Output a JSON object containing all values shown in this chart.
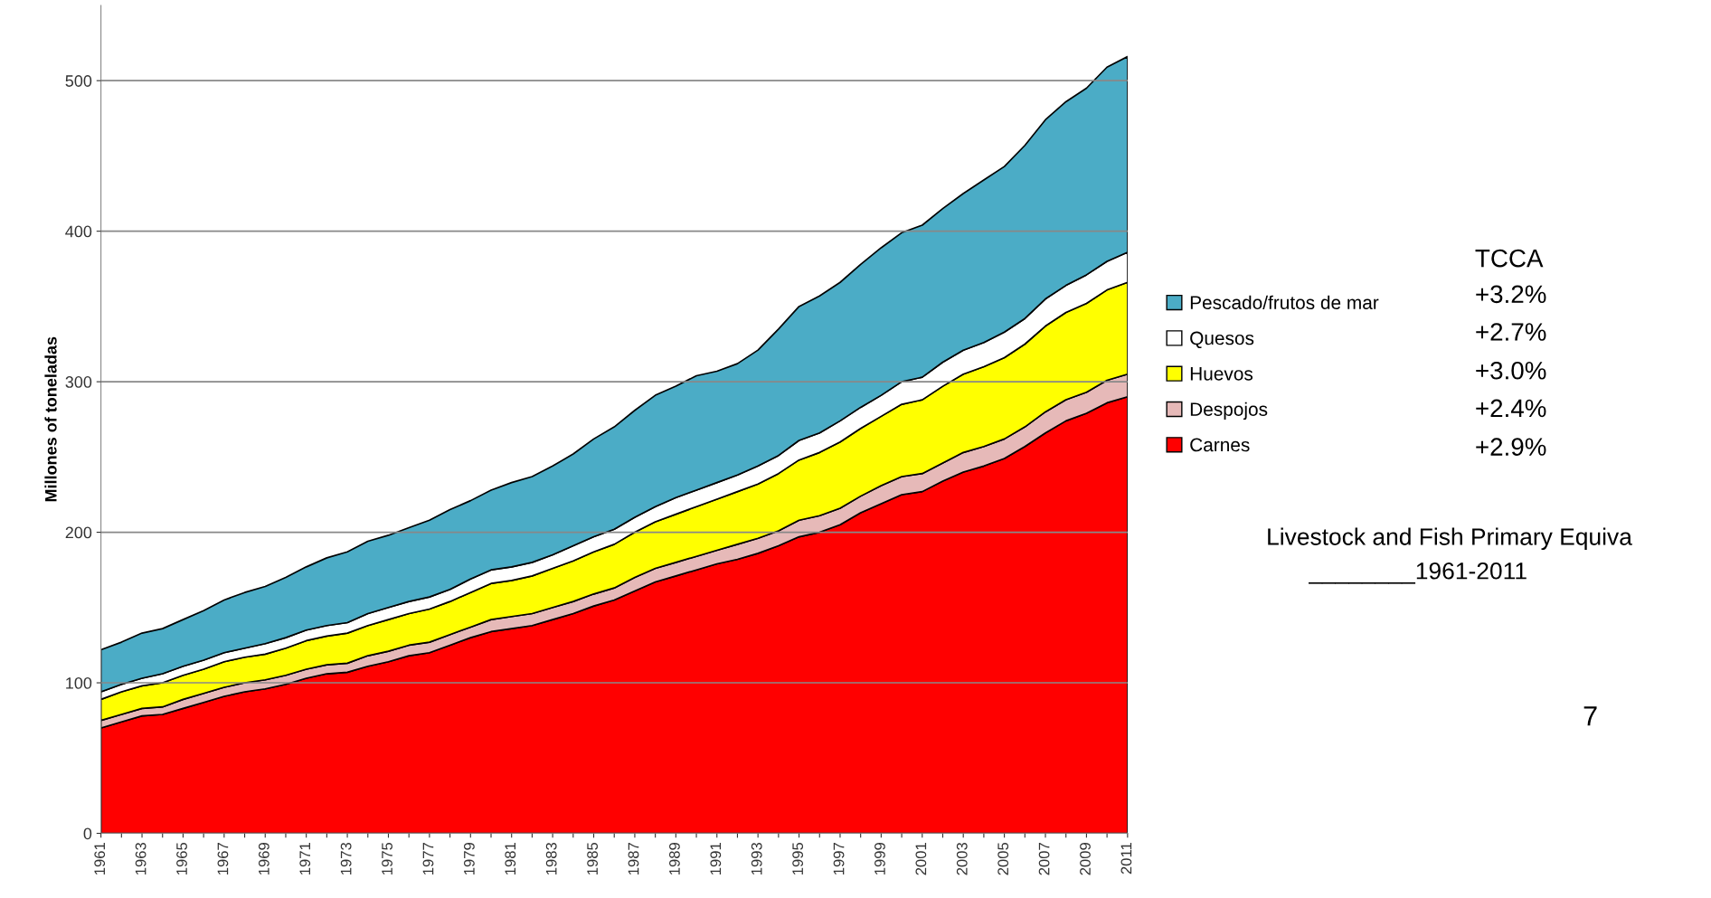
{
  "chart_data": {
    "type": "area",
    "stacked": true,
    "ylabel": "Millones of toneladas",
    "categories": [
      "1961",
      null,
      "1963",
      null,
      "1965",
      null,
      "1967",
      null,
      "1969",
      null,
      "1971",
      null,
      "1973",
      null,
      "1975",
      null,
      "1977",
      null,
      "1979",
      null,
      "1981",
      null,
      "1983",
      null,
      "1985",
      null,
      "1987",
      null,
      "1989",
      null,
      "1991",
      null,
      "1993",
      null,
      "1995",
      null,
      "1997",
      null,
      "1999",
      null,
      "2001",
      null,
      "2003",
      null,
      "2005",
      null,
      "2007",
      null,
      "2009",
      null,
      "2011"
    ],
    "series": [
      {
        "name": "Carnes",
        "color": "#ff0000",
        "values": [
          70,
          74,
          78,
          79,
          83,
          87,
          91,
          94,
          96,
          99,
          103,
          106,
          107,
          111,
          114,
          118,
          120,
          125,
          130,
          134,
          136,
          138,
          142,
          146,
          151,
          155,
          161,
          167,
          171,
          175,
          179,
          182,
          186,
          191,
          197,
          200,
          205,
          213,
          219,
          225,
          227,
          234,
          240,
          244,
          249,
          257,
          266,
          274,
          279,
          286,
          290
        ]
      },
      {
        "name": "Despojos",
        "color": "#e6b9b8",
        "values": [
          5,
          5,
          5,
          5,
          6,
          6,
          6,
          6,
          6,
          6,
          6,
          6,
          6,
          7,
          7,
          7,
          7,
          7,
          7,
          8,
          8,
          8,
          8,
          8,
          8,
          8,
          9,
          9,
          9,
          9,
          9,
          10,
          10,
          10,
          11,
          11,
          11,
          11,
          12,
          12,
          12,
          12,
          13,
          13,
          13,
          13,
          14,
          14,
          14,
          15,
          15
        ]
      },
      {
        "name": "Huevos",
        "color": "#ffff00",
        "values": [
          14,
          15,
          15,
          16,
          16,
          16,
          17,
          17,
          17,
          18,
          19,
          19,
          20,
          20,
          21,
          21,
          22,
          22,
          23,
          24,
          24,
          25,
          26,
          27,
          28,
          29,
          30,
          31,
          32,
          33,
          34,
          35,
          36,
          38,
          40,
          42,
          44,
          45,
          46,
          48,
          49,
          51,
          52,
          53,
          54,
          55,
          57,
          58,
          59,
          60,
          61
        ]
      },
      {
        "name": "Quesos",
        "color": "#ffffff",
        "values": [
          5,
          5,
          5,
          6,
          6,
          6,
          6,
          6,
          7,
          7,
          7,
          7,
          7,
          8,
          8,
          8,
          8,
          8,
          9,
          9,
          9,
          9,
          9,
          10,
          10,
          10,
          10,
          10,
          11,
          11,
          11,
          11,
          12,
          12,
          13,
          13,
          14,
          14,
          14,
          15,
          15,
          16,
          16,
          16,
          17,
          17,
          18,
          18,
          19,
          19,
          20
        ]
      },
      {
        "name": "Pescado/frutos de mar",
        "color": "#4bacc6",
        "values": [
          28,
          28,
          30,
          30,
          31,
          33,
          35,
          37,
          38,
          40,
          42,
          45,
          47,
          48,
          48,
          49,
          51,
          53,
          52,
          53,
          56,
          57,
          59,
          61,
          65,
          68,
          71,
          74,
          74,
          76,
          74,
          74,
          77,
          84,
          89,
          91,
          92,
          95,
          98,
          99,
          101,
          102,
          104,
          108,
          110,
          115,
          119,
          122,
          124,
          129,
          130
        ]
      }
    ],
    "ylim": [
      0,
      550
    ],
    "yticks": [
      0,
      100,
      200,
      300,
      400,
      500
    ],
    "grid": "y",
    "legend": "right",
    "annotations": [
      "TCCA",
      "+3.2%",
      "+2.7%",
      "+3.0%",
      "+2.4%",
      "+2.9%",
      "Livestock and Fish Primary Equiva",
      "________1961-2011",
      "7"
    ]
  }
}
